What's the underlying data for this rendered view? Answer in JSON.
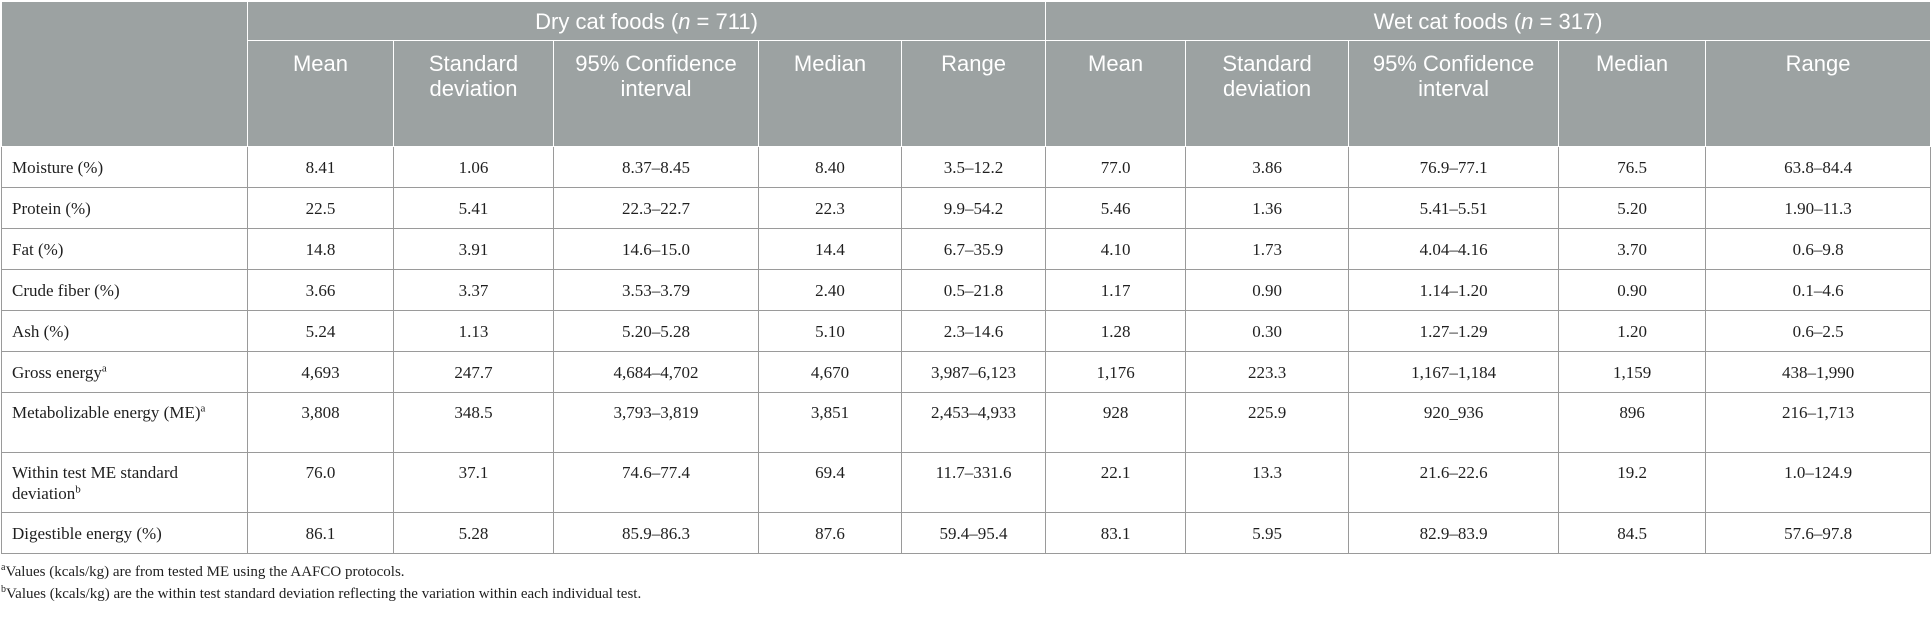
{
  "header": {
    "groups": [
      {
        "label": "Dry cat foods (",
        "n_sym": "n",
        "n_rest": " = 711)"
      },
      {
        "label": "Wet cat foods (",
        "n_sym": "n",
        "n_rest": " = 317)"
      }
    ],
    "columns": [
      "Mean",
      "Standard deviation",
      "95% Confidence interval",
      "Median",
      "Range"
    ]
  },
  "rows": [
    {
      "label": "Moisture (%)",
      "sup": "",
      "dry": [
        "8.41",
        "1.06",
        "8.37–8.45",
        "8.40",
        "3.5–12.2"
      ],
      "wet": [
        "77.0",
        "3.86",
        "76.9–77.1",
        "76.5",
        "63.8–84.4"
      ]
    },
    {
      "label": "Protein (%)",
      "sup": "",
      "dry": [
        "22.5",
        "5.41",
        "22.3–22.7",
        "22.3",
        "9.9–54.2"
      ],
      "wet": [
        "5.46",
        "1.36",
        "5.41–5.51",
        "5.20",
        "1.90–11.3"
      ]
    },
    {
      "label": "Fat (%)",
      "sup": "",
      "dry": [
        "14.8",
        "3.91",
        "14.6–15.0",
        "14.4",
        "6.7–35.9"
      ],
      "wet": [
        "4.10",
        "1.73",
        "4.04–4.16",
        "3.70",
        "0.6–9.8"
      ]
    },
    {
      "label": "Crude fiber (%)",
      "sup": "",
      "dry": [
        "3.66",
        "3.37",
        "3.53–3.79",
        "2.40",
        "0.5–21.8"
      ],
      "wet": [
        "1.17",
        "0.90",
        "1.14–1.20",
        "0.90",
        "0.1–4.6"
      ]
    },
    {
      "label": "Ash (%)",
      "sup": "",
      "dry": [
        "5.24",
        "1.13",
        "5.20–5.28",
        "5.10",
        "2.3–14.6"
      ],
      "wet": [
        "1.28",
        "0.30",
        "1.27–1.29",
        "1.20",
        "0.6–2.5"
      ]
    },
    {
      "label": "Gross energy",
      "sup": "a",
      "dry": [
        "4,693",
        "247.7",
        "4,684–4,702",
        "4,670",
        "3,987–6,123"
      ],
      "wet": [
        "1,176",
        "223.3",
        "1,167–1,184",
        "1,159",
        "438–1,990"
      ]
    },
    {
      "label": "Metabolizable energy (ME)",
      "sup": "a",
      "dry": [
        "3,808",
        "348.5",
        "3,793–3,819",
        "3,851",
        "2,453–4,933"
      ],
      "wet": [
        "928",
        "225.9",
        "920_936",
        "896",
        "216–1,713"
      ]
    },
    {
      "label": "Within test ME standard deviation",
      "sup": "b",
      "dry": [
        "76.0",
        "37.1",
        "74.6–77.4",
        "69.4",
        "11.7–331.6"
      ],
      "wet": [
        "22.1",
        "13.3",
        "21.6–22.6",
        "19.2",
        "1.0–124.9"
      ]
    },
    {
      "label": "Digestible energy (%)",
      "sup": "",
      "dry": [
        "86.1",
        "5.28",
        "85.9–86.3",
        "87.6",
        "59.4–95.4"
      ],
      "wet": [
        "83.1",
        "5.95",
        "82.9–83.9",
        "84.5",
        "57.6–97.8"
      ]
    }
  ],
  "notes": [
    {
      "sup": "a",
      "text": "Values (kcals/kg) are from tested ME using the AAFCO protocols."
    },
    {
      "sup": "b",
      "text": "Values (kcals/kg) are the within test standard deviation reflecting the variation within each individual test."
    }
  ],
  "colors": {
    "header_bg": "#9ca2a2",
    "header_text": "#ffffff",
    "border": "#9a9a9a"
  }
}
